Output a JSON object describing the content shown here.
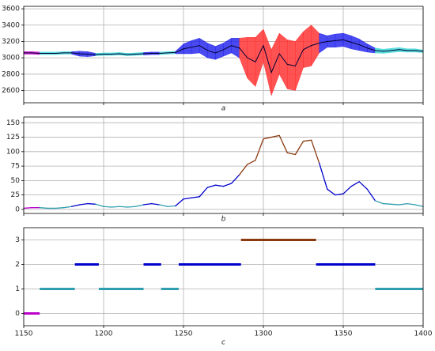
{
  "chart_data": [
    {
      "type": "band",
      "xlabel": "a",
      "xlim": [
        1150,
        1400
      ],
      "ylim": [
        2450,
        3630
      ],
      "yticks": [
        2600,
        2800,
        3000,
        3200,
        3400,
        3600
      ],
      "grid": true,
      "line_color": "#000033",
      "level_colors": [
        "#cc00cc",
        "#40d8d8",
        "#2a2aee",
        "#ff3535"
      ],
      "x": [
        1150,
        1155,
        1160,
        1165,
        1170,
        1175,
        1180,
        1185,
        1190,
        1195,
        1200,
        1205,
        1210,
        1215,
        1220,
        1225,
        1230,
        1235,
        1240,
        1245,
        1250,
        1255,
        1260,
        1265,
        1270,
        1275,
        1280,
        1285,
        1290,
        1295,
        1300,
        1305,
        1310,
        1315,
        1320,
        1325,
        1330,
        1335,
        1340,
        1345,
        1350,
        1355,
        1360,
        1365,
        1370,
        1375,
        1380,
        1385,
        1390,
        1395,
        1400
      ],
      "values": [
        3060,
        3060,
        3055,
        3055,
        3055,
        3060,
        3060,
        3050,
        3045,
        3040,
        3045,
        3045,
        3050,
        3040,
        3045,
        3050,
        3055,
        3055,
        3060,
        3065,
        3110,
        3130,
        3150,
        3090,
        3060,
        3100,
        3150,
        3120,
        3000,
        2950,
        3150,
        2820,
        3050,
        2920,
        2900,
        3100,
        3150,
        3180,
        3200,
        3210,
        3220,
        3190,
        3160,
        3120,
        3090,
        3080,
        3090,
        3100,
        3090,
        3090,
        3080
      ],
      "upper": [
        3075,
        3075,
        3070,
        3070,
        3070,
        3075,
        3075,
        3080,
        3075,
        3055,
        3060,
        3060,
        3065,
        3055,
        3060,
        3065,
        3070,
        3070,
        3075,
        3080,
        3170,
        3210,
        3240,
        3180,
        3140,
        3180,
        3240,
        3240,
        3250,
        3250,
        3350,
        3100,
        3300,
        3220,
        3200,
        3320,
        3400,
        3300,
        3270,
        3290,
        3300,
        3270,
        3230,
        3170,
        3120,
        3105,
        3115,
        3125,
        3110,
        3110,
        3095
      ],
      "lower": [
        3045,
        3045,
        3040,
        3040,
        3040,
        3045,
        3045,
        3020,
        3015,
        3025,
        3030,
        3030,
        3035,
        3025,
        3030,
        3035,
        3040,
        3040,
        3045,
        3050,
        3050,
        3050,
        3060,
        3000,
        2980,
        3020,
        3060,
        3000,
        2750,
        2650,
        2950,
        2540,
        2800,
        2620,
        2600,
        2880,
        2900,
        3060,
        3130,
        3130,
        3140,
        3110,
        3090,
        3070,
        3060,
        3055,
        3065,
        3075,
        3070,
        3070,
        3065
      ]
    },
    {
      "type": "line",
      "xlabel": "b",
      "xlim": [
        1150,
        1400
      ],
      "ylim": [
        -7,
        160
      ],
      "yticks": [
        0,
        25,
        50,
        75,
        100,
        125,
        150
      ],
      "grid": true,
      "x": [
        1150,
        1155,
        1160,
        1165,
        1170,
        1175,
        1180,
        1185,
        1190,
        1195,
        1200,
        1205,
        1210,
        1215,
        1220,
        1225,
        1230,
        1235,
        1240,
        1245,
        1250,
        1255,
        1260,
        1265,
        1270,
        1275,
        1280,
        1285,
        1290,
        1295,
        1300,
        1305,
        1310,
        1315,
        1320,
        1325,
        1330,
        1335,
        1340,
        1345,
        1350,
        1355,
        1360,
        1365,
        1370,
        1375,
        1380,
        1385,
        1390,
        1395,
        1400
      ],
      "values": [
        2,
        3,
        3,
        2,
        2,
        3,
        5,
        8,
        10,
        9,
        5,
        4,
        5,
        4,
        5,
        8,
        10,
        8,
        5,
        6,
        18,
        20,
        22,
        38,
        42,
        40,
        45,
        60,
        78,
        85,
        122,
        125,
        128,
        98,
        95,
        118,
        120,
        80,
        35,
        25,
        27,
        40,
        48,
        35,
        15,
        10,
        9,
        8,
        10,
        8,
        5
      ]
    },
    {
      "type": "gantt",
      "xlabel": "c",
      "xlim": [
        1150,
        1400
      ],
      "ylim": [
        -0.5,
        3.5
      ],
      "xticks": [
        1150,
        1200,
        1250,
        1300,
        1350,
        1400
      ],
      "yticks": [
        0,
        1,
        2,
        3
      ],
      "grid": true,
      "level_colors": [
        "#bb00cc",
        "#2e9db0",
        "#0000cc",
        "#8b3a10"
      ],
      "segments": [
        {
          "x": [
            1150,
            1160
          ],
          "y": 0
        },
        {
          "x": [
            1160,
            1182
          ],
          "y": 1
        },
        {
          "x": [
            1182,
            1197
          ],
          "y": 2
        },
        {
          "x": [
            1197,
            1225
          ],
          "y": 1
        },
        {
          "x": [
            1225,
            1236
          ],
          "y": 2
        },
        {
          "x": [
            1236,
            1247
          ],
          "y": 1
        },
        {
          "x": [
            1247,
            1286
          ],
          "y": 2
        },
        {
          "x": [
            1286,
            1333
          ],
          "y": 3
        },
        {
          "x": [
            1333,
            1370
          ],
          "y": 2
        },
        {
          "x": [
            1370,
            1400
          ],
          "y": 1
        }
      ]
    }
  ]
}
